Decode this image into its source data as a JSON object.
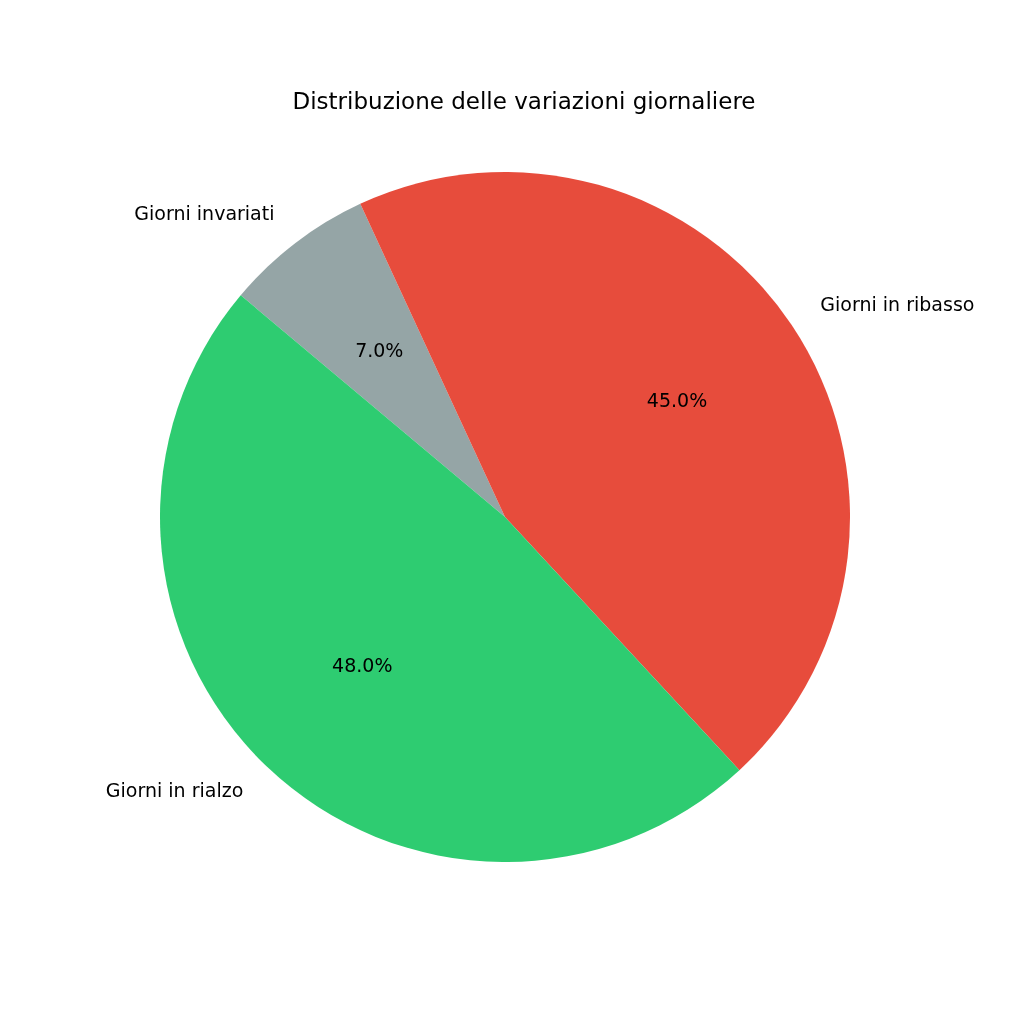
{
  "chart_data": {
    "type": "pie",
    "title": "Distribuzione delle variazioni giornaliere",
    "categories": [
      "Giorni invariati",
      "Giorni in ribasso",
      "Giorni in rialzo"
    ],
    "values": [
      7,
      45,
      48
    ],
    "colors": [
      "#95a5a6",
      "#e74c3c",
      "#2ecc71"
    ],
    "value_labels": [
      "7.0%",
      "45.0%",
      "48.0%"
    ],
    "legend": false
  }
}
